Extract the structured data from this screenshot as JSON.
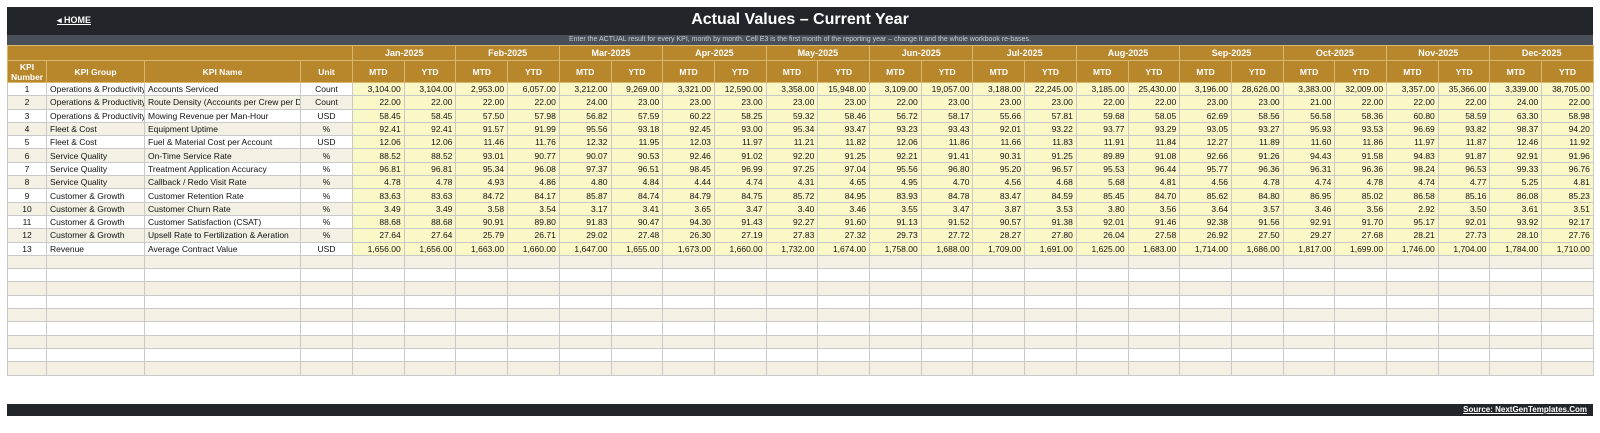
{
  "header": {
    "home_label": "◂  HOME",
    "title": "Actual Values  –  Current Year",
    "subtitle": "Enter the ACTUAL result for every KPI, month by month. Cell E3 is the first month of the reporting year – change it and the whole workbook re-bases."
  },
  "columns": {
    "kpi_number": "KPI Number",
    "kpi_group": "KPI Group",
    "kpi_name": "KPI Name",
    "unit": "Unit",
    "mtd": "MTD",
    "ytd": "YTD"
  },
  "months": [
    "Jan-2025",
    "Feb-2025",
    "Mar-2025",
    "Apr-2025",
    "May-2025",
    "Jun-2025",
    "Jul-2025",
    "Aug-2025",
    "Sep-2025",
    "Oct-2025",
    "Nov-2025",
    "Dec-2025"
  ],
  "rows": [
    {
      "num": "1",
      "group": "Operations & Productivity",
      "name": "Accounts Serviced",
      "unit": "Count",
      "values": [
        "3,104.00",
        "3,104.00",
        "2,953.00",
        "6,057.00",
        "3,212.00",
        "9,269.00",
        "3,321.00",
        "12,590.00",
        "3,358.00",
        "15,948.00",
        "3,109.00",
        "19,057.00",
        "3,188.00",
        "22,245.00",
        "3,185.00",
        "25,430.00",
        "3,196.00",
        "28,626.00",
        "3,383.00",
        "32,009.00",
        "3,357.00",
        "35,366.00",
        "3,339.00",
        "38,705.00"
      ]
    },
    {
      "num": "2",
      "group": "Operations & Productivity",
      "name": "Route Density (Accounts per Crew per Day)",
      "unit": "Count",
      "values": [
        "22.00",
        "22.00",
        "22.00",
        "22.00",
        "24.00",
        "23.00",
        "23.00",
        "23.00",
        "23.00",
        "23.00",
        "22.00",
        "23.00",
        "23.00",
        "23.00",
        "22.00",
        "22.00",
        "23.00",
        "23.00",
        "21.00",
        "22.00",
        "22.00",
        "22.00",
        "24.00",
        "22.00"
      ]
    },
    {
      "num": "3",
      "group": "Operations & Productivity",
      "name": "Mowing Revenue per Man-Hour",
      "unit": "USD",
      "values": [
        "58.45",
        "58.45",
        "57.50",
        "57.98",
        "56.82",
        "57.59",
        "60.22",
        "58.25",
        "59.32",
        "58.46",
        "56.72",
        "58.17",
        "55.66",
        "57.81",
        "59.68",
        "58.05",
        "62.69",
        "58.56",
        "56.58",
        "58.36",
        "60.80",
        "58.59",
        "63.30",
        "58.98"
      ]
    },
    {
      "num": "4",
      "group": "Fleet & Cost",
      "name": "Equipment Uptime",
      "unit": "%",
      "values": [
        "92.41",
        "92.41",
        "91.57",
        "91.99",
        "95.56",
        "93.18",
        "92.45",
        "93.00",
        "95.34",
        "93.47",
        "93.23",
        "93.43",
        "92.01",
        "93.22",
        "93.77",
        "93.29",
        "93.05",
        "93.27",
        "95.93",
        "93.53",
        "96.69",
        "93.82",
        "98.37",
        "94.20"
      ]
    },
    {
      "num": "5",
      "group": "Fleet & Cost",
      "name": "Fuel & Material Cost per Account",
      "unit": "USD",
      "values": [
        "12.06",
        "12.06",
        "11.46",
        "11.76",
        "12.32",
        "11.95",
        "12.03",
        "11.97",
        "11.21",
        "11.82",
        "12.06",
        "11.86",
        "11.66",
        "11.83",
        "11.91",
        "11.84",
        "12.27",
        "11.89",
        "11.60",
        "11.86",
        "11.97",
        "11.87",
        "12.46",
        "11.92"
      ]
    },
    {
      "num": "6",
      "group": "Service Quality",
      "name": "On-Time Service Rate",
      "unit": "%",
      "values": [
        "88.52",
        "88.52",
        "93.01",
        "90.77",
        "90.07",
        "90.53",
        "92.46",
        "91.02",
        "92.20",
        "91.25",
        "92.21",
        "91.41",
        "90.31",
        "91.25",
        "89.89",
        "91.08",
        "92.66",
        "91.26",
        "94.43",
        "91.58",
        "94.83",
        "91.87",
        "92.91",
        "91.96"
      ]
    },
    {
      "num": "7",
      "group": "Service Quality",
      "name": "Treatment Application Accuracy",
      "unit": "%",
      "values": [
        "96.81",
        "96.81",
        "95.34",
        "96.08",
        "97.37",
        "96.51",
        "98.45",
        "96.99",
        "97.25",
        "97.04",
        "95.56",
        "96.80",
        "95.20",
        "96.57",
        "95.53",
        "96.44",
        "95.77",
        "96.36",
        "96.31",
        "96.36",
        "98.24",
        "96.53",
        "99.33",
        "96.76"
      ]
    },
    {
      "num": "8",
      "group": "Service Quality",
      "name": "Callback / Redo Visit Rate",
      "unit": "%",
      "values": [
        "4.78",
        "4.78",
        "4.93",
        "4.86",
        "4.80",
        "4.84",
        "4.44",
        "4.74",
        "4.31",
        "4.65",
        "4.95",
        "4.70",
        "4.56",
        "4.68",
        "5.68",
        "4.81",
        "4.56",
        "4.78",
        "4.74",
        "4.78",
        "4.74",
        "4.77",
        "5.25",
        "4.81"
      ]
    },
    {
      "num": "9",
      "group": "Customer & Growth",
      "name": "Customer Retention Rate",
      "unit": "%",
      "values": [
        "83.63",
        "83.63",
        "84.72",
        "84.17",
        "85.87",
        "84.74",
        "84.79",
        "84.75",
        "85.72",
        "84.95",
        "83.93",
        "84.78",
        "83.47",
        "84.59",
        "85.45",
        "84.70",
        "85.62",
        "84.80",
        "86.95",
        "85.02",
        "86.58",
        "85.16",
        "86.08",
        "85.23"
      ]
    },
    {
      "num": "10",
      "group": "Customer & Growth",
      "name": "Customer Churn Rate",
      "unit": "%",
      "values": [
        "3.49",
        "3.49",
        "3.58",
        "3.54",
        "3.17",
        "3.41",
        "3.65",
        "3.47",
        "3.40",
        "3.46",
        "3.55",
        "3.47",
        "3.87",
        "3.53",
        "3.80",
        "3.56",
        "3.64",
        "3.57",
        "3.46",
        "3.56",
        "2.92",
        "3.50",
        "3.61",
        "3.51"
      ]
    },
    {
      "num": "11",
      "group": "Customer & Growth",
      "name": "Customer Satisfaction (CSAT)",
      "unit": "%",
      "values": [
        "88.68",
        "88.68",
        "90.91",
        "89.80",
        "91.83",
        "90.47",
        "94.30",
        "91.43",
        "92.27",
        "91.60",
        "91.13",
        "91.52",
        "90.57",
        "91.38",
        "92.01",
        "91.46",
        "92.38",
        "91.56",
        "92.91",
        "91.70",
        "95.17",
        "92.01",
        "93.92",
        "92.17"
      ]
    },
    {
      "num": "12",
      "group": "Customer & Growth",
      "name": "Upsell Rate to Fertilization & Aeration",
      "unit": "%",
      "values": [
        "27.64",
        "27.64",
        "25.79",
        "26.71",
        "29.02",
        "27.48",
        "26.30",
        "27.19",
        "27.83",
        "27.32",
        "29.73",
        "27.72",
        "28.27",
        "27.80",
        "26.04",
        "27.58",
        "26.92",
        "27.50",
        "29.27",
        "27.68",
        "28.21",
        "27.73",
        "28.10",
        "27.76"
      ]
    },
    {
      "num": "13",
      "group": "Revenue",
      "name": "Average Contract Value",
      "unit": "USD",
      "values": [
        "1,656.00",
        "1,656.00",
        "1,663.00",
        "1,660.00",
        "1,647.00",
        "1,655.00",
        "1,673.00",
        "1,660.00",
        "1,732.00",
        "1,674.00",
        "1,758.00",
        "1,688.00",
        "1,709.00",
        "1,691.00",
        "1,625.00",
        "1,683.00",
        "1,714.00",
        "1,686.00",
        "1,817.00",
        "1,699.00",
        "1,746.00",
        "1,704.00",
        "1,784.00",
        "1,710.00"
      ]
    }
  ],
  "footer": {
    "source_label": "Source: NextGenTemplates.Com"
  }
}
